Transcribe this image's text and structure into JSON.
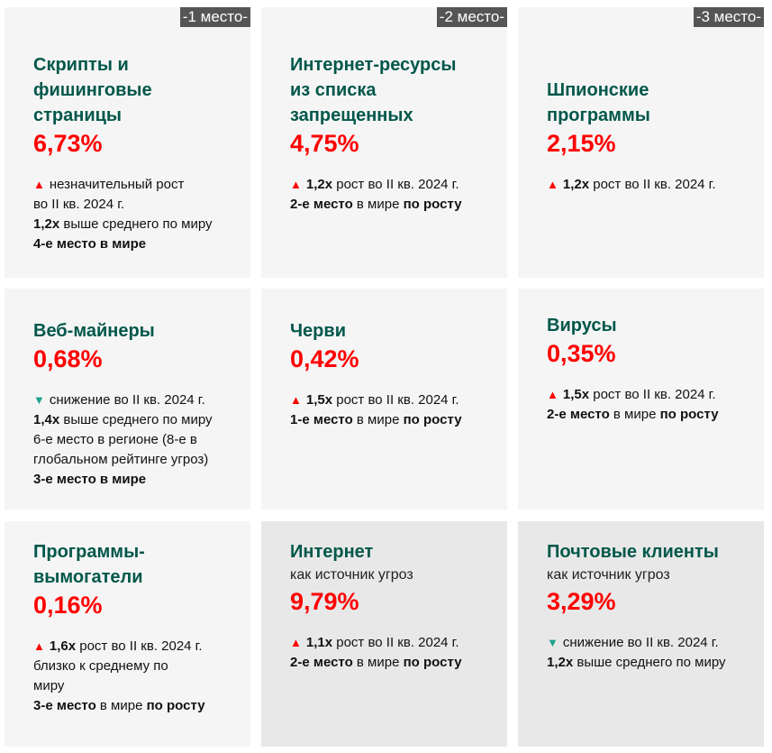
{
  "colors": {
    "title": "#00574a",
    "value": "#ff0000",
    "up": "#ff0000",
    "down": "#1aa389",
    "badge": "#555555"
  },
  "cards": [
    {
      "badge": "-1 место-",
      "title": [
        "Скрипты и",
        "фишинговые",
        "страницы"
      ],
      "value": "6,73%",
      "trend": "up",
      "lines": [
        [
          {
            "t": "незначительный рост"
          }
        ],
        [
          {
            "t": "во II кв. 2024 г."
          }
        ],
        [
          {
            "t": "1,2x",
            "b": true
          },
          {
            "t": " выше среднего по миру"
          }
        ],
        [
          {
            "t": "4-е место в мире",
            "b": true
          }
        ]
      ]
    },
    {
      "badge": "-2 место-",
      "title": [
        "Интернет-ресурсы",
        "из списка",
        "запрещенных"
      ],
      "value": "4,75%",
      "trend": "up",
      "lines": [
        [
          {
            "t": "1,2x",
            "b": true
          },
          {
            "t": " рост во II кв. 2024 г."
          }
        ],
        [
          {
            "t": "2-е место",
            "b": true
          },
          {
            "t": " в мире "
          },
          {
            "t": "по росту",
            "b": true
          }
        ]
      ]
    },
    {
      "badge": "-3 место-",
      "title": [
        "Шпионские",
        "программы"
      ],
      "value": "2,15%",
      "trend": "up",
      "lines": [
        [
          {
            "t": "1,2x",
            "b": true
          },
          {
            "t": " рост во II кв. 2024 г."
          }
        ]
      ]
    },
    {
      "title": [
        "Веб-майнеры"
      ],
      "value": "0,68%",
      "trend": "down",
      "lines": [
        [
          {
            "t": "снижение во II кв. 2024 г."
          }
        ],
        [
          {
            "t": "1,4x",
            "b": true
          },
          {
            "t": " выше среднего по миру"
          }
        ],
        [
          {
            "t": "6-е место в регионе (8-е в"
          }
        ],
        [
          {
            "t": "глобальном рейтинге угроз)"
          }
        ],
        [
          {
            "t": "3-е место в мире",
            "b": true
          }
        ]
      ]
    },
    {
      "title": [
        "Черви"
      ],
      "value": "0,42%",
      "trend": "up",
      "lines": [
        [
          {
            "t": "1,5x",
            "b": true
          },
          {
            "t": " рост во II кв. 2024 г."
          }
        ],
        [
          {
            "t": "1-е место",
            "b": true
          },
          {
            "t": " в мире "
          },
          {
            "t": "по росту",
            "b": true
          }
        ]
      ]
    },
    {
      "title": [
        "Вирусы"
      ],
      "value": "0,35%",
      "trend": "up",
      "lines": [
        [
          {
            "t": "1,5x",
            "b": true
          },
          {
            "t": " рост во II кв. 2024 г."
          }
        ],
        [
          {
            "t": "2-е место",
            "b": true
          },
          {
            "t": " в мире "
          },
          {
            "t": "по росту",
            "b": true
          }
        ]
      ]
    },
    {
      "title": [
        "Программы-",
        "вымогатели"
      ],
      "value": "0,16%",
      "trend": "up",
      "lines": [
        [
          {
            "t": "1,6x",
            "b": true
          },
          {
            "t": " рост во II кв. 2024 г."
          }
        ],
        [
          {
            "t": "близко к среднему по"
          }
        ],
        [
          {
            "t": "миру"
          }
        ],
        [
          {
            "t": "3-е место",
            "b": true
          },
          {
            "t": " в мире "
          },
          {
            "t": "по росту",
            "b": true
          }
        ]
      ]
    },
    {
      "title": [
        "Интернет"
      ],
      "subtitle": "как источник угроз",
      "value": "9,79%",
      "trend": "up",
      "lines": [
        [
          {
            "t": "1,1x",
            "b": true
          },
          {
            "t": " рост во II кв. 2024 г."
          }
        ],
        [
          {
            "t": "2-е место",
            "b": true
          },
          {
            "t": " в мире "
          },
          {
            "t": "по росту",
            "b": true
          }
        ]
      ]
    },
    {
      "title": [
        "Почтовые клиенты"
      ],
      "subtitle": "как источник угроз",
      "value": "3,29%",
      "trend": "down",
      "lines": [
        [
          {
            "t": "снижение во II кв. 2024 г."
          }
        ],
        [
          {
            "t": "1,2x",
            "b": true
          },
          {
            "t": " выше среднего по миру"
          }
        ]
      ]
    }
  ]
}
